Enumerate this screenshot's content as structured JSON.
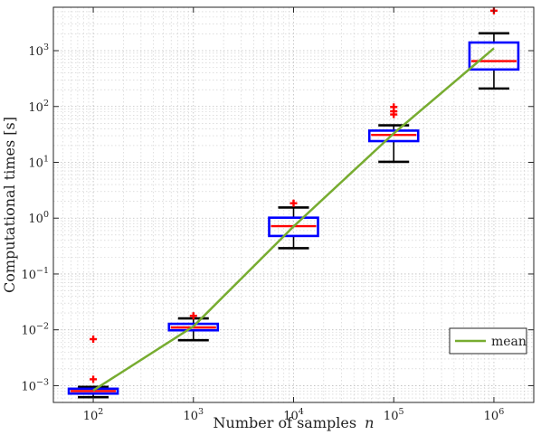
{
  "chart_data": {
    "type": "boxplot",
    "xscale": "log",
    "yscale": "log",
    "xlim": [
      40,
      2500000
    ],
    "ylim": [
      0.0005,
      6000
    ],
    "grid": "on (major + minor, dotted)",
    "xlabel": "Number of samples",
    "xlabel_var": "n",
    "ylabel": "Computational times [s]",
    "x_ticks": [
      {
        "value": 100,
        "base": "10",
        "exp": "2"
      },
      {
        "value": 1000,
        "base": "10",
        "exp": "3"
      },
      {
        "value": 10000,
        "base": "10",
        "exp": "4"
      },
      {
        "value": 100000,
        "base": "10",
        "exp": "5"
      },
      {
        "value": 1000000,
        "base": "10",
        "exp": "6"
      }
    ],
    "y_ticks": [
      {
        "value": 0.001,
        "base": "10",
        "exp": "−3"
      },
      {
        "value": 0.01,
        "base": "10",
        "exp": "−2"
      },
      {
        "value": 0.1,
        "base": "10",
        "exp": "−1"
      },
      {
        "value": 1,
        "base": "10",
        "exp": "0"
      },
      {
        "value": 10,
        "base": "10",
        "exp": "1"
      },
      {
        "value": 100,
        "base": "10",
        "exp": "2"
      },
      {
        "value": 1000,
        "base": "10",
        "exp": "3"
      }
    ],
    "boxes": [
      {
        "n": 100,
        "whisker_low": 0.00062,
        "q1": 0.00072,
        "median": 0.0008,
        "q3": 0.00088,
        "whisker_high": 0.00095,
        "outliers": [
          0.0013,
          0.0068
        ]
      },
      {
        "n": 1000,
        "whisker_low": 0.0065,
        "q1": 0.0098,
        "median": 0.011,
        "q3": 0.0128,
        "whisker_high": 0.016,
        "outliers": [
          0.0178
        ]
      },
      {
        "n": 10000,
        "whisker_low": 0.29,
        "q1": 0.48,
        "median": 0.72,
        "q3": 1.02,
        "whisker_high": 1.55,
        "outliers": [
          1.85
        ]
      },
      {
        "n": 100000,
        "whisker_low": 10.2,
        "q1": 24,
        "median": 31,
        "q3": 37,
        "whisker_high": 46,
        "outliers": [
          72,
          82,
          98
        ]
      },
      {
        "n": 1000000,
        "whisker_low": 210,
        "q1": 460,
        "median": 650,
        "q3": 1400,
        "whisker_high": 2050,
        "outliers": [
          5200
        ]
      }
    ],
    "series": [
      {
        "name": "mean",
        "x": [
          100,
          1000,
          10000,
          100000,
          1000000
        ],
        "y": [
          0.00082,
          0.0115,
          0.71,
          33,
          1100
        ]
      }
    ],
    "legend": {
      "position": "bottom-right",
      "entries": [
        "mean"
      ]
    },
    "colors": {
      "box": "#0000ff",
      "median": "#ff0000",
      "whisker": "#000000",
      "outlier": "#ff0000",
      "mean": "#77ac30",
      "grid": "#b5b5b5"
    }
  }
}
